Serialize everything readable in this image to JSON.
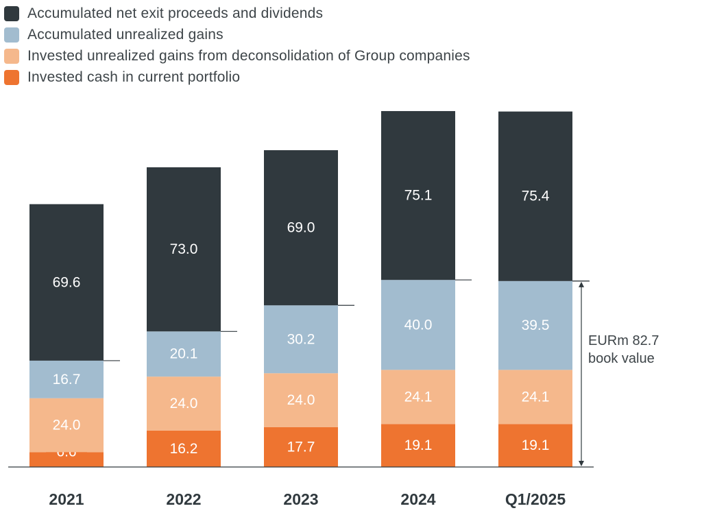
{
  "chart_data": {
    "type": "bar",
    "stacked": true,
    "categories": [
      "2021",
      "2022",
      "2023",
      "2024",
      "Q1/2025"
    ],
    "series": [
      {
        "name": "Invested cash in current portfolio",
        "color": "#ee7430",
        "text_color": "#ffffff",
        "values": [
          6.6,
          16.2,
          17.7,
          19.1,
          19.1
        ]
      },
      {
        "name": "Invested unrealized gains from deconsolidation of Group companies",
        "color": "#f5b88c",
        "text_color": "#ffffff",
        "values": [
          24.0,
          24.0,
          24.0,
          24.1,
          24.1
        ]
      },
      {
        "name": "Accumulated unrealized gains",
        "color": "#a2bccf",
        "text_color": "#ffffff",
        "values": [
          16.7,
          20.1,
          30.2,
          40.0,
          39.5
        ]
      },
      {
        "name": "Accumulated net exit proceeds and dividends",
        "color": "#30393e",
        "text_color": "#ffffff",
        "values": [
          69.6,
          73.0,
          69.0,
          75.1,
          75.4
        ]
      }
    ],
    "legend_order": [
      3,
      2,
      1,
      0
    ],
    "legend_position": "top-left",
    "title": "",
    "xlabel": "",
    "ylabel": "",
    "ylim": [
      0,
      165
    ],
    "grid": false,
    "annotation": {
      "lines": [
        "EURm 82.7",
        "book value"
      ],
      "value": 82.7,
      "category": "Q1/2025"
    },
    "label_text": [
      "6.6",
      "16.2",
      "17.7",
      "19.1",
      "19.1",
      "24.0",
      "24.0",
      "24.0",
      "24.1",
      "24.1",
      "16.7",
      "20.1",
      "30.2",
      "40.0",
      "39.5",
      "69.6",
      "73.0",
      "69.0",
      "75.1",
      "75.4"
    ]
  }
}
